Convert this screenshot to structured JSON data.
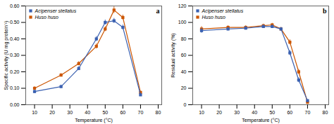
{
  "chart_data": [
    {
      "type": "line",
      "xlabel": "Temperature (°C)",
      "ylabel": "Specific activity (U mg protein⁻¹)",
      "annotation": "a",
      "x": [
        10,
        25,
        35,
        45,
        50,
        55,
        60,
        70
      ],
      "series": [
        {
          "name": "Acipenser stellatus",
          "color": "#3A60B0",
          "marker": "square",
          "values": [
            0.08,
            0.11,
            0.22,
            0.4,
            0.5,
            0.51,
            0.47,
            0.06
          ],
          "errors": [
            0.01,
            0.01,
            0.012,
            0.015,
            0.015,
            0.015,
            0.015,
            0.008
          ]
        },
        {
          "name": "Huso huso",
          "color": "#CC5500",
          "marker": "square",
          "values": [
            0.1,
            0.18,
            0.25,
            0.355,
            0.46,
            0.575,
            0.53,
            0.075
          ],
          "errors": [
            0.01,
            0.01,
            0.012,
            0.015,
            0.015,
            0.02,
            0.015,
            0.008
          ]
        }
      ],
      "xlim": [
        5,
        82
      ],
      "xticks": [
        10,
        20,
        30,
        40,
        50,
        60,
        70,
        80
      ],
      "ylim": [
        0,
        0.6
      ],
      "yticks": [
        0,
        0.1,
        0.2,
        0.3,
        0.4,
        0.5,
        0.6
      ],
      "legend": "upper left",
      "grid": false
    },
    {
      "type": "line",
      "xlabel": "Temperature (°C)",
      "ylabel": "Residual activity (%)",
      "annotation": "b",
      "x": [
        10,
        25,
        35,
        45,
        50,
        55,
        60,
        65,
        70
      ],
      "series": [
        {
          "name": "Acipenser stellatus",
          "color": "#3A60B0",
          "marker": "square",
          "values": [
            90,
            92,
            93,
            95,
            95,
            92,
            63,
            30,
            5
          ],
          "errors": [
            3,
            2,
            2,
            2,
            2,
            2,
            3,
            3,
            1
          ]
        },
        {
          "name": "Huso huso",
          "color": "#CC5500",
          "marker": "square",
          "values": [
            92,
            94,
            94,
            96,
            97,
            92,
            76,
            40,
            3
          ],
          "errors": [
            3,
            2,
            2,
            2,
            2,
            2,
            3,
            3,
            1
          ]
        }
      ],
      "xlim": [
        5,
        82
      ],
      "xticks": [
        10,
        20,
        30,
        40,
        50,
        60,
        70,
        80
      ],
      "ylim": [
        0,
        120
      ],
      "yticks": [
        0,
        20,
        40,
        60,
        80,
        100,
        120
      ],
      "legend": "upper left",
      "grid": false
    }
  ]
}
